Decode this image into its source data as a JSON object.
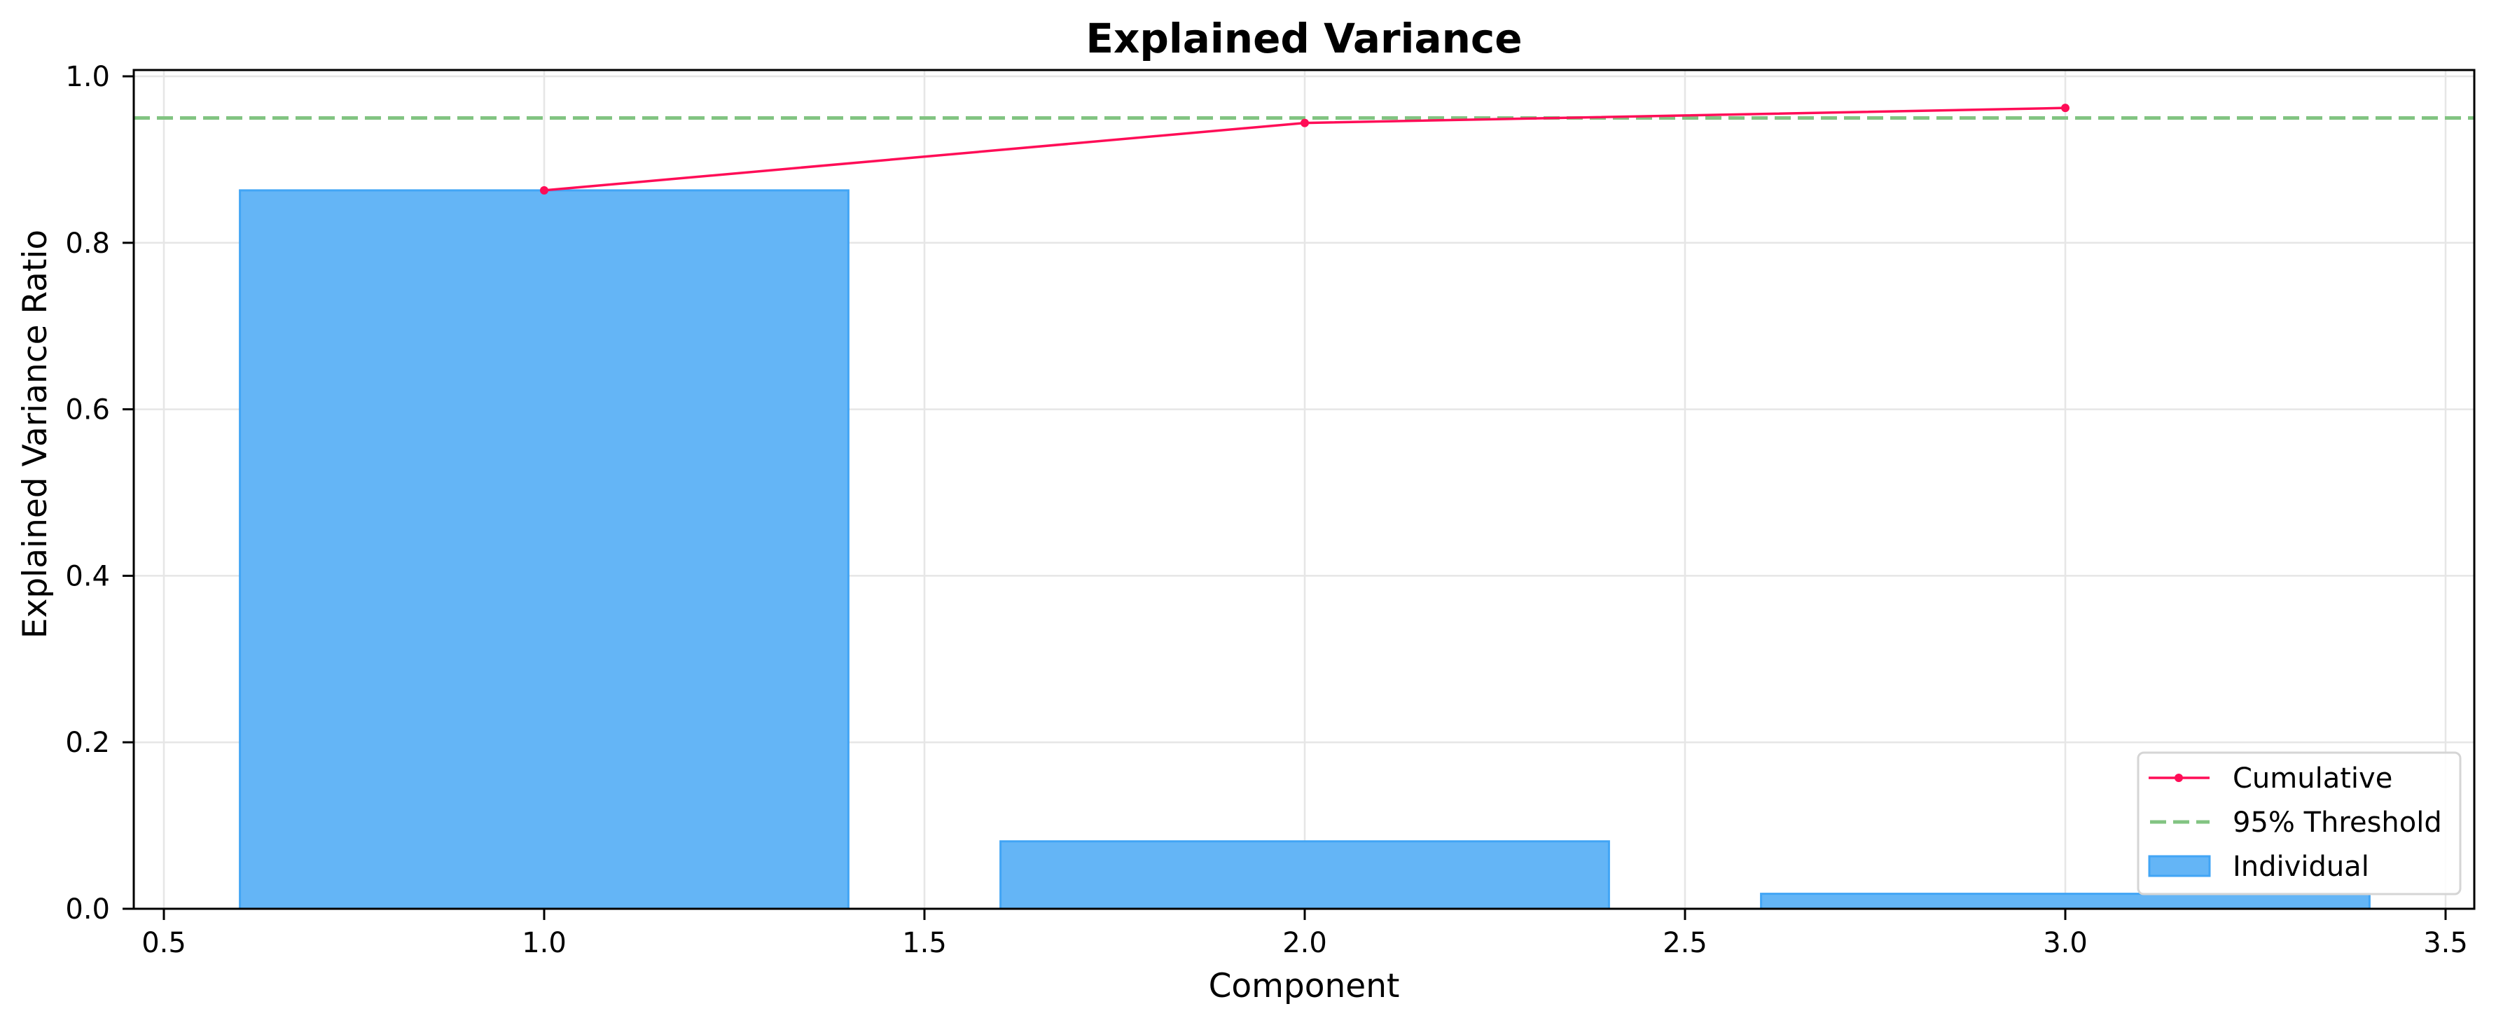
{
  "chart_data": {
    "type": "bar",
    "title": "Explained Variance",
    "xlabel": "Component",
    "ylabel": "Explained Variance Ratio",
    "xlim": [
      0.46,
      3.54
    ],
    "ylim": [
      0.0,
      1.007
    ],
    "xticks": [
      0.5,
      1.0,
      1.5,
      2.0,
      2.5,
      3.0,
      3.5
    ],
    "xtick_labels": [
      "0.5",
      "1.0",
      "1.5",
      "2.0",
      "2.5",
      "3.0",
      "3.5"
    ],
    "yticks": [
      0.0,
      0.2,
      0.4,
      0.6,
      0.8,
      1.0
    ],
    "ytick_labels": [
      "0.0",
      "0.2",
      "0.4",
      "0.6",
      "0.8",
      "1.0"
    ],
    "grid": true,
    "legend_position": "lower right",
    "categories": [
      1,
      2,
      3
    ],
    "bar_width": 0.8,
    "series": [
      {
        "name": "Individual",
        "type": "bar",
        "x": [
          1,
          2,
          3
        ],
        "values": [
          0.863,
          0.081,
          0.018
        ],
        "color": "#64b5f6",
        "edge_color": "#42a5f5"
      },
      {
        "name": "Cumulative",
        "type": "line",
        "marker": "dot",
        "x": [
          1,
          2,
          3
        ],
        "values": [
          0.863,
          0.944,
          0.962
        ],
        "color": "#ff0d57"
      },
      {
        "name": "95% Threshold",
        "type": "hline",
        "values": [
          0.95
        ],
        "linestyle": "dashed",
        "color": "#82c482"
      }
    ],
    "legend": [
      {
        "label": "Cumulative",
        "kind": "line-marker",
        "color": "#ff0d57"
      },
      {
        "label": "95% Threshold",
        "kind": "dashed",
        "color": "#82c482"
      },
      {
        "label": "Individual",
        "kind": "patch",
        "color": "#64b5f6",
        "edge_color": "#42a5f5"
      }
    ]
  }
}
